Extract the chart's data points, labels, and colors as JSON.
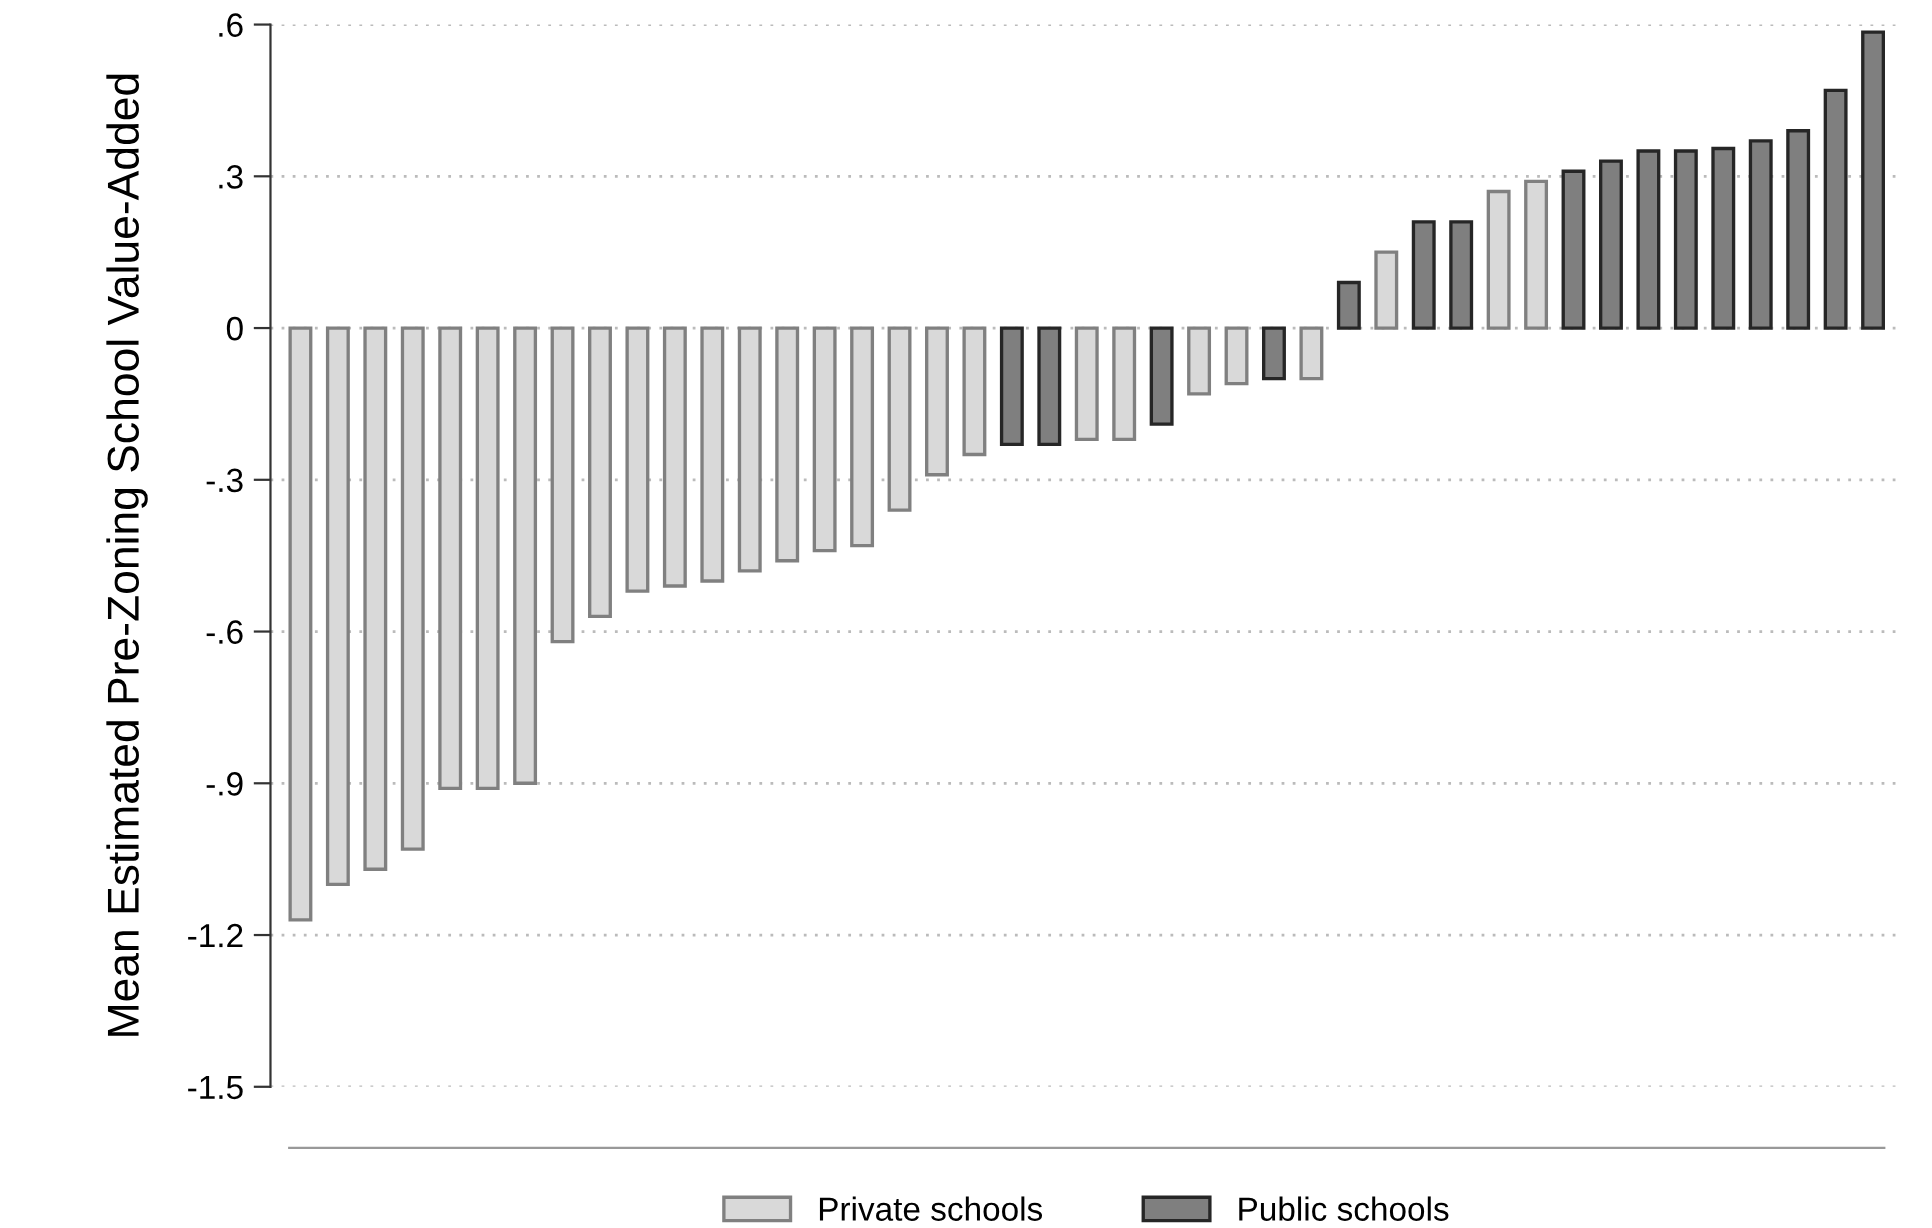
{
  "chart_data": {
    "type": "bar",
    "ylabel": "Mean Estimated Pre-Zoning School Value-Added",
    "categories": [
      null,
      null,
      null,
      null,
      null,
      null,
      null,
      null,
      null,
      null,
      null,
      null,
      null,
      null,
      null,
      null,
      null,
      null,
      null,
      null,
      null,
      null,
      null,
      null,
      null,
      null,
      null,
      null,
      null,
      null,
      null,
      null,
      null,
      null,
      null,
      null,
      null,
      null,
      null,
      null,
      null,
      null,
      null
    ],
    "series": [
      {
        "name": "Private schools",
        "color": "#d9d9d9",
        "values": [
          -1.17,
          -1.1,
          -1.07,
          -1.03,
          -0.91,
          -0.91,
          -0.9,
          -0.62,
          -0.57,
          -0.52,
          -0.51,
          -0.5,
          -0.48,
          -0.46,
          -0.44,
          -0.43,
          -0.36,
          -0.29,
          -0.25,
          null,
          null,
          -0.22,
          -0.22,
          null,
          -0.13,
          -0.11,
          null,
          -0.1,
          null,
          0.15,
          null,
          null,
          0.27,
          0.29,
          null,
          null,
          null,
          null,
          null,
          null,
          null,
          null,
          null
        ]
      },
      {
        "name": "Public schools",
        "color": "#7f7f7f",
        "values": [
          null,
          null,
          null,
          null,
          null,
          null,
          null,
          null,
          null,
          null,
          null,
          null,
          null,
          null,
          null,
          null,
          null,
          null,
          null,
          -0.23,
          -0.23,
          null,
          null,
          -0.19,
          null,
          null,
          -0.1,
          null,
          0.09,
          null,
          0.21,
          0.21,
          null,
          null,
          0.31,
          0.33,
          0.35,
          0.35,
          0.355,
          0.37,
          0.39,
          0.47,
          0.585
        ]
      }
    ],
    "ylim": [
      -1.5,
      0.6
    ],
    "yticks": [
      {
        "value": -1.5,
        "label": "-1.5"
      },
      {
        "value": -1.2,
        "label": "-1.2"
      },
      {
        "value": -0.9,
        "label": "-.9"
      },
      {
        "value": -0.6,
        "label": "-.6"
      },
      {
        "value": -0.3,
        "label": "-.3"
      },
      0,
      {
        "value": 0.3,
        "label": ".3"
      },
      {
        "value": 0.6,
        "label": ".6"
      }
    ],
    "grid": "y",
    "legend": "bottom"
  }
}
